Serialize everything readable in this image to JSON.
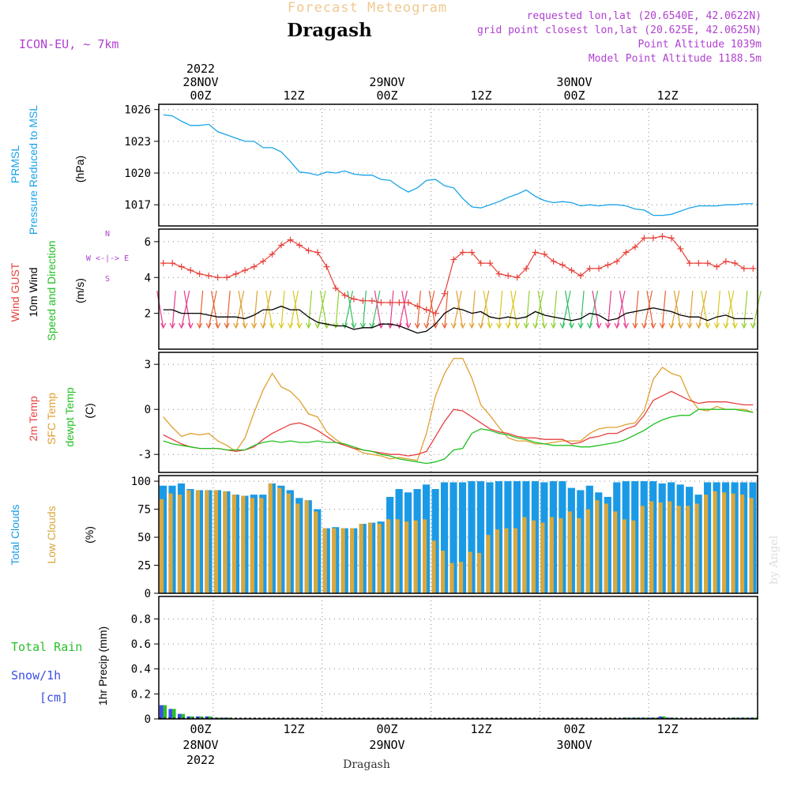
{
  "header": {
    "title": "Forecast Meteogram",
    "location": "Dragash",
    "model": "ICON-EU, ~ 7km",
    "requested": "requested lon,lat (20.6540E, 42.0622N)",
    "grid_point": "grid point closest lon,lat (20.625E, 42.0625N)",
    "point_altitude": "Point Altitude 1039m",
    "model_altitude": "Model Point Altitude 1188.5m",
    "footer_location": "Dragash",
    "watermark": "by Angel"
  },
  "time_axis": {
    "top_year": "2022",
    "top_days": [
      "28NOV",
      "29NOV",
      "30NOV"
    ],
    "hour_labels": [
      "00Z",
      "12Z",
      "00Z",
      "12Z",
      "00Z",
      "12Z"
    ],
    "bottom_days": [
      "28NOV",
      "29NOV",
      "30NOV"
    ],
    "bottom_year": "2022"
  },
  "panel_labels": {
    "pressure": [
      "PRMSL",
      "Pressure Reduced to MSL",
      "(hPa)"
    ],
    "wind": [
      "Wind GUST",
      "10m Wind",
      "Speed and Direction",
      "(m/s)"
    ],
    "compass": [
      "N",
      "W <-|-> E",
      "S"
    ],
    "temp": [
      "2m Temp",
      "SFC Temp",
      "dewpt Temp",
      "(C)"
    ],
    "clouds": [
      "Total Clouds",
      "Low Clouds",
      "(%)"
    ],
    "precip": [
      "Total  Rain",
      "Snow/1h",
      "[cm]",
      "1hr Precip (mm)"
    ]
  },
  "colors": {
    "pressure": "#1aa3e8",
    "gust": "#e8403a",
    "wind": "#000000",
    "temp2m": "#e84040",
    "sfc": "#e0a030",
    "dewpt": "#20c020",
    "total_clouds": "#1a9ae6",
    "low_clouds": "#d9a83c",
    "rain": "#2bbf2b",
    "snow": "#3b4de6",
    "title": "#f0c890",
    "magenta_label": "#b040d0"
  },
  "chart_data": [
    {
      "type": "line",
      "name": "pressure",
      "x_unit": "hours from 2022-11-27 18Z",
      "ylim": [
        1015,
        1026.5
      ],
      "yticks": [
        1017,
        1020,
        1023,
        1026
      ],
      "x": [
        0,
        1,
        2,
        3,
        4,
        5,
        6,
        7,
        8,
        9,
        10,
        11,
        12,
        13,
        14,
        15,
        16,
        17,
        18,
        19,
        20,
        21,
        22,
        23,
        24,
        25,
        26,
        27,
        28,
        29,
        30,
        31,
        32,
        33,
        34,
        35,
        36,
        37,
        38,
        39,
        40,
        41,
        42,
        43,
        44,
        45,
        46,
        47,
        48,
        49,
        50,
        51,
        52,
        53,
        54,
        55,
        56,
        57,
        58,
        59,
        60,
        61,
        62,
        63,
        64,
        65
      ],
      "y": [
        1025.5,
        1025.4,
        1024.9,
        1024.5,
        1024.5,
        1024.6,
        1023.9,
        1023.6,
        1023.3,
        1023.0,
        1023.0,
        1022.4,
        1022.4,
        1022.0,
        1021.1,
        1020.1,
        1020.0,
        1019.8,
        1020.1,
        1020.0,
        1020.2,
        1019.9,
        1019.8,
        1019.8,
        1019.4,
        1019.3,
        1018.7,
        1018.2,
        1018.6,
        1019.3,
        1019.4,
        1018.8,
        1018.6,
        1017.6,
        1016.8,
        1016.7,
        1017.0,
        1017.3,
        1017.7,
        1018.0,
        1018.4,
        1017.8,
        1017.4,
        1017.2,
        1017.3,
        1017.2,
        1016.9,
        1017.0,
        1016.9,
        1017.0,
        1017.0,
        1016.9,
        1016.6,
        1016.5,
        1016.0,
        1016.0,
        1016.1,
        1016.4,
        1016.7,
        1016.9,
        1016.9,
        1016.9,
        1017.0,
        1017.0,
        1017.1,
        1017.1
      ]
    },
    {
      "type": "line",
      "name": "wind",
      "ylim": [
        0,
        6.7
      ],
      "yticks": [
        2,
        4,
        6
      ],
      "x": [
        0,
        1,
        2,
        3,
        4,
        5,
        6,
        7,
        8,
        9,
        10,
        11,
        12,
        13,
        14,
        15,
        16,
        17,
        18,
        19,
        20,
        21,
        22,
        23,
        24,
        25,
        26,
        27,
        28,
        29,
        30,
        31,
        32,
        33,
        34,
        35,
        36,
        37,
        38,
        39,
        40,
        41,
        42,
        43,
        44,
        45,
        46,
        47,
        48,
        49,
        50,
        51,
        52,
        53,
        54,
        55,
        56,
        57,
        58,
        59,
        60,
        61,
        62,
        63,
        64,
        65
      ],
      "gust": [
        4.8,
        4.8,
        4.6,
        4.4,
        4.2,
        4.1,
        4.0,
        4.0,
        4.2,
        4.4,
        4.6,
        4.9,
        5.3,
        5.8,
        6.1,
        5.8,
        5.5,
        5.4,
        4.6,
        3.4,
        3.0,
        2.8,
        2.7,
        2.7,
        2.6,
        2.6,
        2.6,
        2.6,
        2.4,
        2.2,
        2.0,
        3.1,
        5.0,
        5.4,
        5.4,
        4.8,
        4.8,
        4.2,
        4.1,
        4.0,
        4.5,
        5.4,
        5.3,
        4.9,
        4.7,
        4.4,
        4.1,
        4.5,
        4.5,
        4.7,
        4.9,
        5.4,
        5.7,
        6.2,
        6.2,
        6.3,
        6.2,
        5.6,
        4.8,
        4.8,
        4.8,
        4.6,
        4.9,
        4.8,
        4.5,
        4.5
      ],
      "speed": [
        2.2,
        2.2,
        2.0,
        2.0,
        2.0,
        1.9,
        1.8,
        1.8,
        1.8,
        1.7,
        1.9,
        2.2,
        2.2,
        2.4,
        2.2,
        2.2,
        1.8,
        1.5,
        1.4,
        1.3,
        1.3,
        1.1,
        1.2,
        1.2,
        1.4,
        1.4,
        1.3,
        1.1,
        0.9,
        1.0,
        1.4,
        2.0,
        2.3,
        2.2,
        2.0,
        2.1,
        1.8,
        1.7,
        1.8,
        1.7,
        1.8,
        2.1,
        1.9,
        1.8,
        1.7,
        1.6,
        1.7,
        2.0,
        1.9,
        1.6,
        1.7,
        2.0,
        2.1,
        2.2,
        2.3,
        2.2,
        2.1,
        1.9,
        1.8,
        1.8,
        1.6,
        1.8,
        1.9,
        1.7,
        1.7,
        1.7
      ]
    },
    {
      "type": "line",
      "name": "temperature",
      "ylim": [
        -4.2,
        3.8
      ],
      "yticks": [
        -3,
        0,
        3
      ],
      "x": [
        0,
        1,
        2,
        3,
        4,
        5,
        6,
        7,
        8,
        9,
        10,
        11,
        12,
        13,
        14,
        15,
        16,
        17,
        18,
        19,
        20,
        21,
        22,
        23,
        24,
        25,
        26,
        27,
        28,
        29,
        30,
        31,
        32,
        33,
        34,
        35,
        36,
        37,
        38,
        39,
        40,
        41,
        42,
        43,
        44,
        45,
        46,
        47,
        48,
        49,
        50,
        51,
        52,
        53,
        54,
        55,
        56,
        57,
        58,
        59,
        60,
        61,
        62,
        63,
        64,
        65
      ],
      "t2m": [
        -1.7,
        -2.0,
        -2.3,
        -2.5,
        -2.6,
        -2.6,
        -2.6,
        -2.7,
        -2.8,
        -2.7,
        -2.5,
        -2.0,
        -1.6,
        -1.3,
        -1.0,
        -0.9,
        -1.1,
        -1.4,
        -1.8,
        -2.2,
        -2.4,
        -2.6,
        -2.7,
        -2.8,
        -2.9,
        -3.0,
        -3.0,
        -3.1,
        -3.0,
        -2.8,
        -1.8,
        -0.8,
        0.0,
        -0.1,
        -0.5,
        -0.9,
        -1.3,
        -1.5,
        -1.6,
        -1.8,
        -1.9,
        -1.9,
        -2.0,
        -2.0,
        -2.0,
        -2.3,
        -2.2,
        -1.9,
        -1.8,
        -1.6,
        -1.6,
        -1.3,
        -1.1,
        -0.4,
        0.6,
        0.9,
        1.2,
        0.9,
        0.6,
        0.4,
        0.5,
        0.5,
        0.5,
        0.4,
        0.3,
        0.3
      ],
      "sfc": [
        -0.5,
        -1.2,
        -1.8,
        -1.6,
        -1.7,
        -1.6,
        -2.1,
        -2.4,
        -2.8,
        -1.9,
        -0.2,
        1.3,
        2.4,
        1.5,
        1.2,
        0.6,
        -0.3,
        -0.5,
        -1.5,
        -2.0,
        -2.4,
        -2.6,
        -2.9,
        -3.0,
        -3.1,
        -3.3,
        -3.2,
        -3.3,
        -3.4,
        -1.6,
        0.9,
        2.4,
        3.4,
        3.4,
        2.1,
        0.3,
        -0.4,
        -1.2,
        -1.9,
        -2.1,
        -2.1,
        -2.3,
        -2.3,
        -2.2,
        -2.1,
        -2.1,
        -2.1,
        -1.6,
        -1.3,
        -1.2,
        -1.2,
        -1.0,
        -0.9,
        -0.1,
        2.0,
        2.8,
        2.4,
        2.2,
        0.8,
        0.0,
        -0.1,
        0.2,
        0.0,
        0.0,
        0.0,
        -0.2
      ],
      "dewpt": [
        -2.1,
        -2.3,
        -2.4,
        -2.5,
        -2.6,
        -2.6,
        -2.6,
        -2.7,
        -2.7,
        -2.7,
        -2.4,
        -2.2,
        -2.1,
        -2.2,
        -2.1,
        -2.2,
        -2.2,
        -2.1,
        -2.2,
        -2.2,
        -2.3,
        -2.5,
        -2.7,
        -2.8,
        -3.0,
        -3.1,
        -3.3,
        -3.4,
        -3.5,
        -3.6,
        -3.5,
        -3.3,
        -2.7,
        -2.6,
        -1.6,
        -1.3,
        -1.4,
        -1.6,
        -1.7,
        -1.9,
        -2.0,
        -2.2,
        -2.3,
        -2.4,
        -2.4,
        -2.4,
        -2.5,
        -2.5,
        -2.4,
        -2.3,
        -2.2,
        -2.0,
        -1.7,
        -1.4,
        -1.0,
        -0.7,
        -0.5,
        -0.4,
        -0.4,
        0.0,
        0.0,
        0.0,
        0.0,
        0.0,
        -0.1,
        -0.2
      ]
    },
    {
      "type": "bar",
      "name": "clouds",
      "ylim": [
        0,
        105
      ],
      "yticks": [
        0,
        25,
        50,
        75,
        100
      ],
      "x": [
        0,
        1,
        2,
        3,
        4,
        5,
        6,
        7,
        8,
        9,
        10,
        11,
        12,
        13,
        14,
        15,
        16,
        17,
        18,
        19,
        20,
        21,
        22,
        23,
        24,
        25,
        26,
        27,
        28,
        29,
        30,
        31,
        32,
        33,
        34,
        35,
        36,
        37,
        38,
        39,
        40,
        41,
        42,
        43,
        44,
        45,
        46,
        47,
        48,
        49,
        50,
        51,
        52,
        53,
        54,
        55,
        56,
        57,
        58,
        59,
        60,
        61,
        62,
        63,
        64,
        65
      ],
      "total": [
        96,
        96,
        98,
        93,
        92,
        92,
        92,
        91,
        88,
        87,
        88,
        88,
        98,
        96,
        92,
        85,
        83,
        75,
        58,
        59,
        58,
        58,
        62,
        63,
        64,
        86,
        93,
        90,
        93,
        97,
        93,
        99,
        99,
        99,
        100,
        100,
        99,
        100,
        100,
        100,
        100,
        100,
        99,
        100,
        100,
        94,
        92,
        96,
        90,
        86,
        99,
        100,
        100,
        100,
        100,
        98,
        99,
        97,
        95,
        88,
        99,
        99,
        99,
        99,
        99,
        99
      ],
      "low": [
        84,
        89,
        88,
        92,
        92,
        92,
        92,
        91,
        88,
        87,
        85,
        85,
        98,
        94,
        89,
        80,
        83,
        73,
        58,
        58,
        58,
        58,
        62,
        63,
        62,
        66,
        66,
        64,
        65,
        66,
        47,
        38,
        27,
        28,
        37,
        36,
        52,
        57,
        58,
        58,
        68,
        65,
        63,
        68,
        67,
        73,
        67,
        75,
        83,
        80,
        73,
        66,
        65,
        78,
        82,
        81,
        82,
        78,
        78,
        80,
        88,
        91,
        90,
        89,
        88,
        85
      ]
    },
    {
      "type": "bar",
      "name": "precip",
      "ylim": [
        0,
        0.98
      ],
      "yticks": [
        0,
        0.2,
        0.4,
        0.6,
        0.8
      ],
      "x": [
        0,
        1,
        2,
        3,
        4,
        5,
        6,
        7,
        8,
        9,
        10,
        11,
        12,
        13,
        14,
        15,
        16,
        17,
        18,
        19,
        20,
        21,
        22,
        23,
        24,
        25,
        26,
        27,
        28,
        29,
        30,
        31,
        32,
        33,
        34,
        35,
        36,
        37,
        38,
        39,
        40,
        41,
        42,
        43,
        44,
        45,
        46,
        47,
        48,
        49,
        50,
        51,
        52,
        53,
        54,
        55,
        56,
        57,
        58,
        59,
        60,
        61,
        62,
        63,
        64,
        65
      ],
      "rain": [
        0.11,
        0.08,
        0.04,
        0.02,
        0.02,
        0.02,
        0.01,
        0.01,
        0,
        0,
        0,
        0,
        0,
        0,
        0,
        0,
        0,
        0,
        0,
        0,
        0,
        0,
        0,
        0,
        0,
        0,
        0,
        0,
        0,
        0,
        0,
        0,
        0,
        0,
        0,
        0,
        0,
        0,
        0,
        0,
        0,
        0,
        0,
        0,
        0,
        0,
        0,
        0,
        0,
        0,
        0,
        0.01,
        0.01,
        0.01,
        0.01,
        0.02,
        0.01,
        0,
        0,
        0,
        0,
        0,
        0,
        0.01,
        0.01,
        0.01
      ]
    }
  ]
}
